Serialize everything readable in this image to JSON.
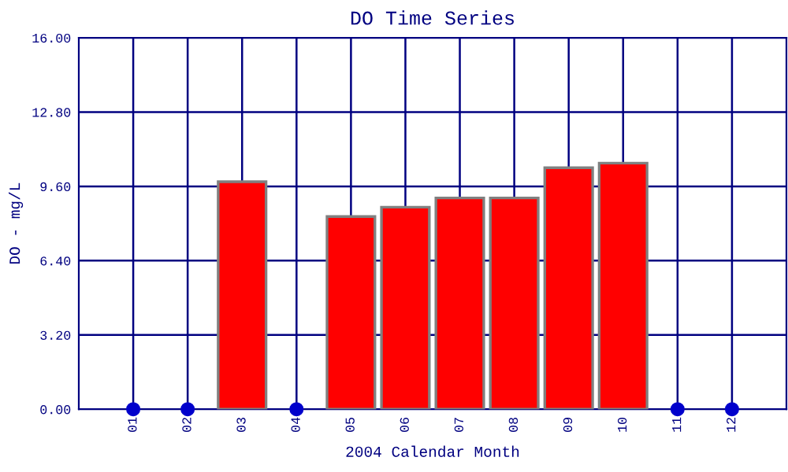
{
  "chart_data": {
    "type": "bar",
    "title": "DO Time Series",
    "xlabel": "2004 Calendar Month",
    "ylabel": "DO - mg/L",
    "categories": [
      "01",
      "02",
      "03",
      "04",
      "05",
      "06",
      "07",
      "08",
      "09",
      "10",
      "11",
      "12"
    ],
    "series": [
      {
        "color": "#ff0000",
        "values": [
          null,
          null,
          9.8,
          null,
          8.3,
          8.7,
          9.1,
          9.1,
          10.4,
          10.6,
          null,
          null
        ]
      },
      {
        "type": "scatter",
        "color": "#0000cc",
        "marker": "circle",
        "values": [
          0,
          0,
          null,
          0,
          null,
          null,
          null,
          null,
          null,
          null,
          0,
          0
        ]
      }
    ],
    "ylim": [
      0,
      16
    ],
    "yticks": [
      {
        "value": 0,
        "label": "0.00"
      },
      {
        "value": 3.2,
        "label": "3.20"
      },
      {
        "value": 6.4,
        "label": "6.40"
      },
      {
        "value": 9.6,
        "label": "9.60"
      },
      {
        "value": 12.8,
        "label": "12.80"
      },
      {
        "value": 16,
        "label": "16.00"
      }
    ],
    "grid": true
  }
}
